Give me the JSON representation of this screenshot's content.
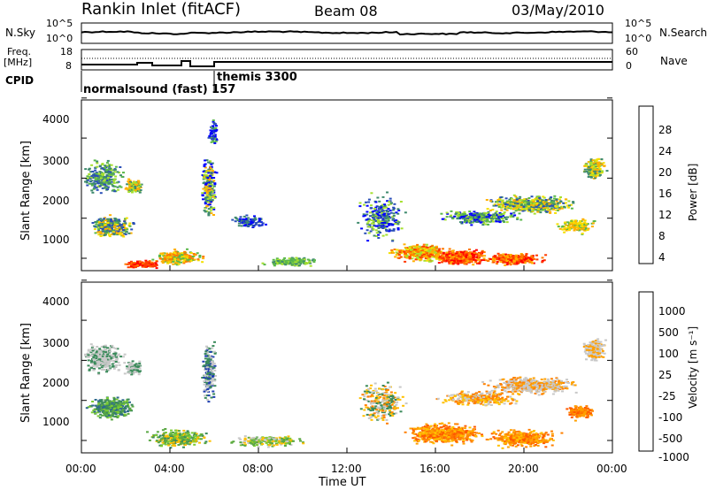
{
  "header": {
    "station": "Rankin Inlet (fitACF)",
    "beam": "Beam 08",
    "date": "03/May/2010"
  },
  "noise_panel": {
    "left_label": "N.Sky",
    "left_ticks": [
      "10^5",
      "10^0"
    ],
    "right_ticks": [
      "10^5",
      "10^0"
    ],
    "right_label": "N.Search",
    "right_legend_style": "dotted"
  },
  "freq_panel": {
    "left_label_1": "Freq.",
    "left_label_2": "[MHz]",
    "left_ticks": [
      "18",
      "8"
    ],
    "right_ticks": [
      "60",
      "0"
    ],
    "right_label": "Nave",
    "right_legend_style": "dotted"
  },
  "cpid_panel": {
    "label": "CPID",
    "modes": [
      "normalsound (fast) 157",
      "themis 3300"
    ]
  },
  "power_panel": {
    "ylabel": "Slant Range [km]",
    "yticks": [
      "4000",
      "3000",
      "2000",
      "1000"
    ],
    "colorbar_label": "Power [dB]",
    "colorbar_ticks": [
      "28",
      "24",
      "20",
      "16",
      "12",
      "8",
      "4"
    ],
    "colors": [
      "#0000ff",
      "#2a4fb8",
      "#3f8a6e",
      "#5ab84a",
      "#a6e030",
      "#f4e000",
      "#ffb000",
      "#ff7a00",
      "#ff3a00",
      "#ff0000"
    ]
  },
  "velocity_panel": {
    "ylabel": "Slant Range [km]",
    "yticks": [
      "4000",
      "3000",
      "2000",
      "1000"
    ],
    "colorbar_label": "Velocity [m s⁻¹]",
    "colorbar_ticks": [
      "1000",
      "500",
      "100",
      "25",
      "-25",
      "-100",
      "-500",
      "-1000"
    ],
    "colors": [
      "#1f3fb0",
      "#2f6a8e",
      "#3a8a5a",
      "#5aa844",
      "#7ccc33",
      "#c8c8c8",
      "#ffc000",
      "#ffa000",
      "#ff8000",
      "#ff5a00",
      "#ff2a00",
      "#ff0000"
    ]
  },
  "xaxis": {
    "label": "Time UT",
    "ticks": [
      "00:00",
      "04:00",
      "08:00",
      "12:00",
      "16:00",
      "20:00",
      "00:00"
    ]
  }
}
